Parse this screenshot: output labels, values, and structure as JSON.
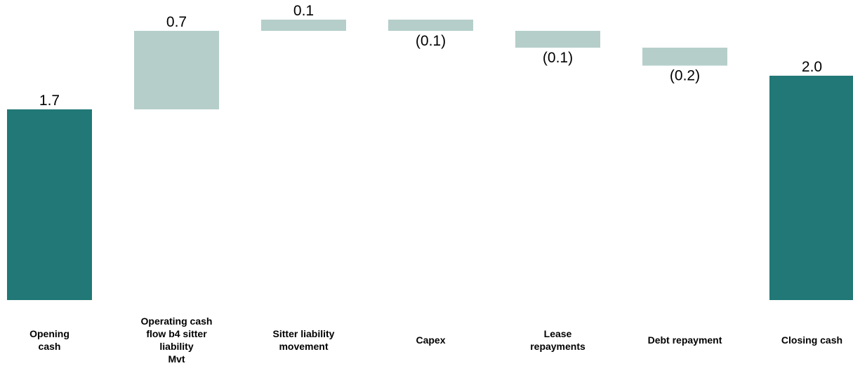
{
  "chart_data": {
    "type": "bar",
    "subtype": "waterfall",
    "title": "",
    "xlabel": "",
    "ylabel": "",
    "grid": false,
    "legend": "none",
    "colors": {
      "total": "#217876",
      "step": "#b5ceca"
    },
    "categories": [
      {
        "label_lines": [
          "Opening",
          "cash"
        ],
        "kind": "total",
        "value": 1.7,
        "label": "1.7"
      },
      {
        "label_lines": [
          "Operating cash",
          "flow b4 sitter",
          "liability",
          "Mvt"
        ],
        "kind": "delta",
        "value": 0.7,
        "label": "0.7"
      },
      {
        "label_lines": [
          "Sitter liability",
          "movement"
        ],
        "kind": "delta",
        "value": 0.1,
        "label": "0.1"
      },
      {
        "label_lines": [
          "Capex"
        ],
        "kind": "delta",
        "value": -0.1,
        "label": "(0.1)"
      },
      {
        "label_lines": [
          "Lease",
          "repayments"
        ],
        "kind": "delta",
        "value": -0.15,
        "label": "(0.1)"
      },
      {
        "label_lines": [
          "Debt repayment"
        ],
        "kind": "delta",
        "value": -0.16,
        "label": "(0.2)"
      },
      {
        "label_lines": [
          "Closing cash"
        ],
        "kind": "total",
        "value": 2.0,
        "label": "2.0"
      }
    ]
  }
}
